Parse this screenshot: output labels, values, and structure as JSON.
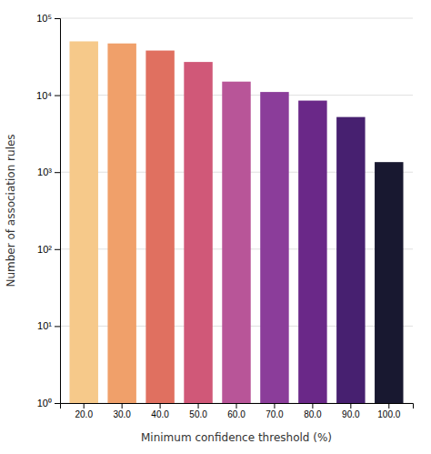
{
  "chart_data": {
    "type": "bar",
    "categories": [
      "20.0",
      "30.0",
      "40.0",
      "50.0",
      "60.0",
      "70.0",
      "80.0",
      "90.0",
      "100.0"
    ],
    "values": [
      50000,
      47000,
      38000,
      27000,
      15000,
      11000,
      8500,
      5200,
      1350
    ],
    "colors": [
      "#F6C98A",
      "#F0A06A",
      "#E07060",
      "#D05878",
      "#B85598",
      "#8B3D9A",
      "#6A2888",
      "#472070",
      "#181830"
    ],
    "x_label": "Minimum confidence threshold (%)",
    "y_label": "Number of association rules",
    "log": "y",
    "ylim": [
      1,
      100000
    ],
    "yticks": [
      {
        "value": 1,
        "label": "10⁰"
      },
      {
        "value": 10,
        "label": "10¹"
      },
      {
        "value": 100,
        "label": "10²"
      },
      {
        "value": 1000,
        "label": "10³"
      },
      {
        "value": 10000,
        "label": "10⁴"
      },
      {
        "value": 100000,
        "label": "10⁵"
      }
    ],
    "grid": true
  }
}
